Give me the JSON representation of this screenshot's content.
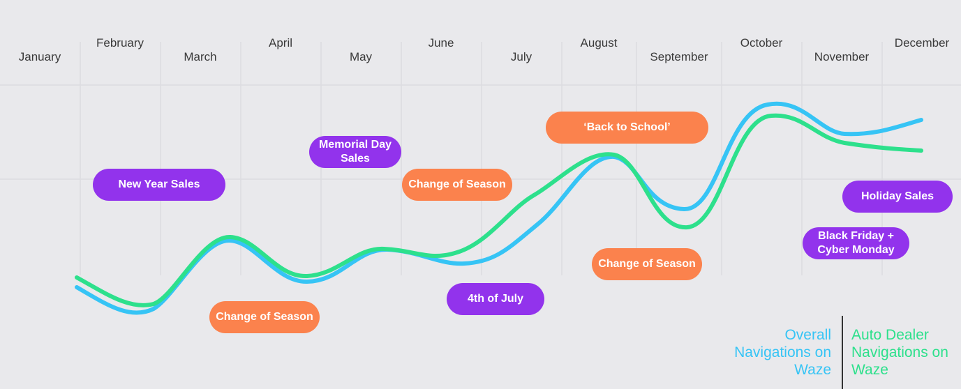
{
  "chart_data": {
    "type": "line",
    "x": [
      "January",
      "February",
      "March",
      "April",
      "May",
      "June",
      "July",
      "August",
      "September",
      "October",
      "November",
      "December"
    ],
    "series": [
      {
        "name": "Overall Navigations on Waze",
        "color": "#36c4f5"
      },
      {
        "name": "Auto Dealer Navigations on Waze",
        "color": "#2de08c"
      }
    ],
    "annotations": [
      {
        "id": "new-year-sales",
        "text": "New Year Sales",
        "kind": "purple"
      },
      {
        "id": "change-of-season-1",
        "text": "Change of Season",
        "kind": "orange"
      },
      {
        "id": "memorial-day-sales",
        "text": "Memorial Day Sales",
        "kind": "purple"
      },
      {
        "id": "change-of-season-2",
        "text": "Change of Season",
        "kind": "orange"
      },
      {
        "id": "4th-of-july",
        "text": "4th of July",
        "kind": "purple"
      },
      {
        "id": "back-to-school",
        "text": "‘Back to School’",
        "kind": "orange"
      },
      {
        "id": "change-of-season-3",
        "text": "Change of Season",
        "kind": "orange"
      },
      {
        "id": "black-friday",
        "text": "Black Friday + Cyber Monday",
        "kind": "purple"
      },
      {
        "id": "holiday-sales",
        "text": "Holiday Sales",
        "kind": "purple"
      }
    ],
    "legend": {
      "left": "Overall Navigations on Waze",
      "right": "Auto Dealer Navigations on Waze"
    },
    "grid": true,
    "colors": {
      "purple": "#9233ec",
      "orange": "#fb824d",
      "blue": "#36c4f5",
      "green": "#2de08c"
    }
  }
}
